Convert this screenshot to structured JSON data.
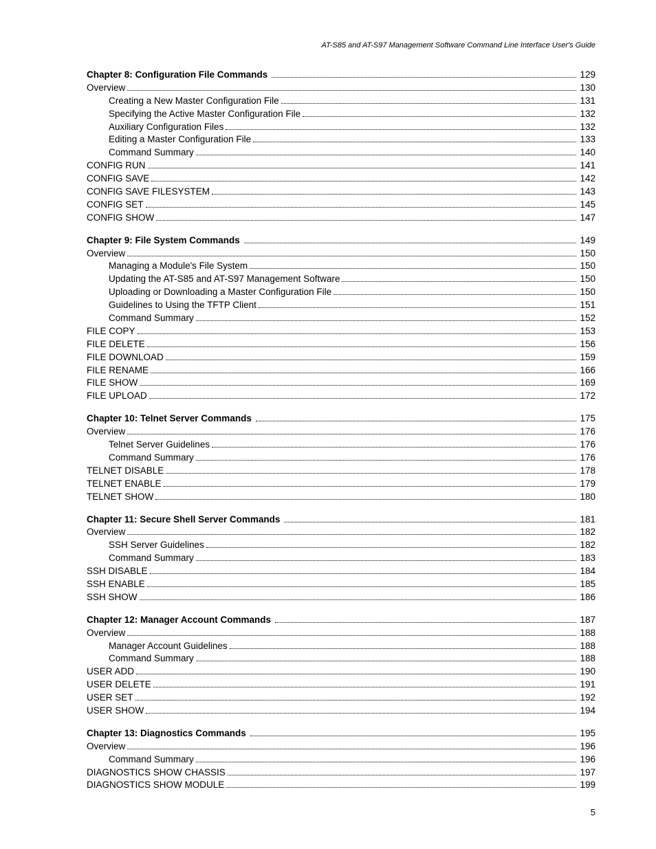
{
  "header": "AT-S85 and AT-S97 Management Software Command Line Interface User's Guide",
  "page_number": "5",
  "sections": [
    {
      "entries": [
        {
          "label": "Chapter 8: Configuration File Commands",
          "page": "129",
          "indent": 0,
          "bold": true
        },
        {
          "label": "Overview",
          "page": "130",
          "indent": 1,
          "bold": false
        },
        {
          "label": "Creating a New Master Configuration File",
          "page": "131",
          "indent": 2,
          "bold": false
        },
        {
          "label": "Specifying the Active Master Configuration File",
          "page": "132",
          "indent": 2,
          "bold": false
        },
        {
          "label": "Auxiliary Configuration Files",
          "page": "132",
          "indent": 2,
          "bold": false
        },
        {
          "label": "Editing a Master Configuration File",
          "page": "133",
          "indent": 2,
          "bold": false
        },
        {
          "label": "Command Summary",
          "page": "140",
          "indent": 2,
          "bold": false
        },
        {
          "label": "CONFIG RUN",
          "page": "141",
          "indent": 1,
          "bold": false
        },
        {
          "label": "CONFIG SAVE",
          "page": "142",
          "indent": 1,
          "bold": false
        },
        {
          "label": "CONFIG SAVE FILESYSTEM",
          "page": "143",
          "indent": 1,
          "bold": false
        },
        {
          "label": "CONFIG SET",
          "page": "145",
          "indent": 1,
          "bold": false
        },
        {
          "label": "CONFIG SHOW",
          "page": "147",
          "indent": 1,
          "bold": false
        }
      ]
    },
    {
      "entries": [
        {
          "label": "Chapter 9: File System Commands",
          "page": "149",
          "indent": 0,
          "bold": true
        },
        {
          "label": "Overview",
          "page": "150",
          "indent": 1,
          "bold": false
        },
        {
          "label": "Managing a Module's File System",
          "page": "150",
          "indent": 2,
          "bold": false
        },
        {
          "label": "Updating the AT-S85 and AT-S97 Management Software",
          "page": "150",
          "indent": 2,
          "bold": false
        },
        {
          "label": "Uploading or Downloading a Master Configuration File",
          "page": "150",
          "indent": 2,
          "bold": false
        },
        {
          "label": "Guidelines to Using the TFTP Client",
          "page": "151",
          "indent": 2,
          "bold": false
        },
        {
          "label": "Command Summary",
          "page": "152",
          "indent": 2,
          "bold": false
        },
        {
          "label": "FILE COPY",
          "page": "153",
          "indent": 1,
          "bold": false
        },
        {
          "label": "FILE DELETE",
          "page": "156",
          "indent": 1,
          "bold": false
        },
        {
          "label": "FILE DOWNLOAD",
          "page": "159",
          "indent": 1,
          "bold": false
        },
        {
          "label": "FILE RENAME",
          "page": "166",
          "indent": 1,
          "bold": false
        },
        {
          "label": "FILE SHOW",
          "page": "169",
          "indent": 1,
          "bold": false
        },
        {
          "label": "FILE UPLOAD",
          "page": "172",
          "indent": 1,
          "bold": false
        }
      ]
    },
    {
      "entries": [
        {
          "label": "Chapter 10: Telnet Server Commands",
          "page": "175",
          "indent": 0,
          "bold": true
        },
        {
          "label": "Overview",
          "page": "176",
          "indent": 1,
          "bold": false
        },
        {
          "label": "Telnet Server Guidelines",
          "page": "176",
          "indent": 2,
          "bold": false
        },
        {
          "label": "Command Summary",
          "page": "176",
          "indent": 2,
          "bold": false
        },
        {
          "label": "TELNET DISABLE",
          "page": "178",
          "indent": 1,
          "bold": false
        },
        {
          "label": "TELNET ENABLE",
          "page": "179",
          "indent": 1,
          "bold": false
        },
        {
          "label": "TELNET SHOW",
          "page": "180",
          "indent": 1,
          "bold": false
        }
      ]
    },
    {
      "entries": [
        {
          "label": "Chapter 11: Secure Shell Server Commands",
          "page": "181",
          "indent": 0,
          "bold": true
        },
        {
          "label": "Overview",
          "page": "182",
          "indent": 1,
          "bold": false
        },
        {
          "label": "SSH Server Guidelines",
          "page": "182",
          "indent": 2,
          "bold": false
        },
        {
          "label": "Command Summary",
          "page": "183",
          "indent": 2,
          "bold": false
        },
        {
          "label": "SSH DISABLE",
          "page": "184",
          "indent": 1,
          "bold": false
        },
        {
          "label": "SSH ENABLE",
          "page": "185",
          "indent": 1,
          "bold": false
        },
        {
          "label": "SSH SHOW",
          "page": "186",
          "indent": 1,
          "bold": false
        }
      ]
    },
    {
      "entries": [
        {
          "label": "Chapter 12: Manager Account Commands",
          "page": "187",
          "indent": 0,
          "bold": true
        },
        {
          "label": "Overview",
          "page": "188",
          "indent": 1,
          "bold": false
        },
        {
          "label": "Manager Account Guidelines",
          "page": "188",
          "indent": 2,
          "bold": false
        },
        {
          "label": "Command Summary",
          "page": "188",
          "indent": 2,
          "bold": false
        },
        {
          "label": "USER ADD",
          "page": "190",
          "indent": 1,
          "bold": false
        },
        {
          "label": "USER DELETE",
          "page": "191",
          "indent": 1,
          "bold": false
        },
        {
          "label": "USER SET",
          "page": "192",
          "indent": 1,
          "bold": false
        },
        {
          "label": "USER SHOW",
          "page": "194",
          "indent": 1,
          "bold": false
        }
      ]
    },
    {
      "entries": [
        {
          "label": "Chapter 13: Diagnostics Commands",
          "page": "195",
          "indent": 0,
          "bold": true
        },
        {
          "label": "Overview",
          "page": "196",
          "indent": 1,
          "bold": false
        },
        {
          "label": "Command Summary",
          "page": "196",
          "indent": 2,
          "bold": false
        },
        {
          "label": "DIAGNOSTICS SHOW CHASSIS",
          "page": "197",
          "indent": 1,
          "bold": false
        },
        {
          "label": "DIAGNOSTICS SHOW MODULE",
          "page": "199",
          "indent": 1,
          "bold": false
        }
      ]
    }
  ]
}
